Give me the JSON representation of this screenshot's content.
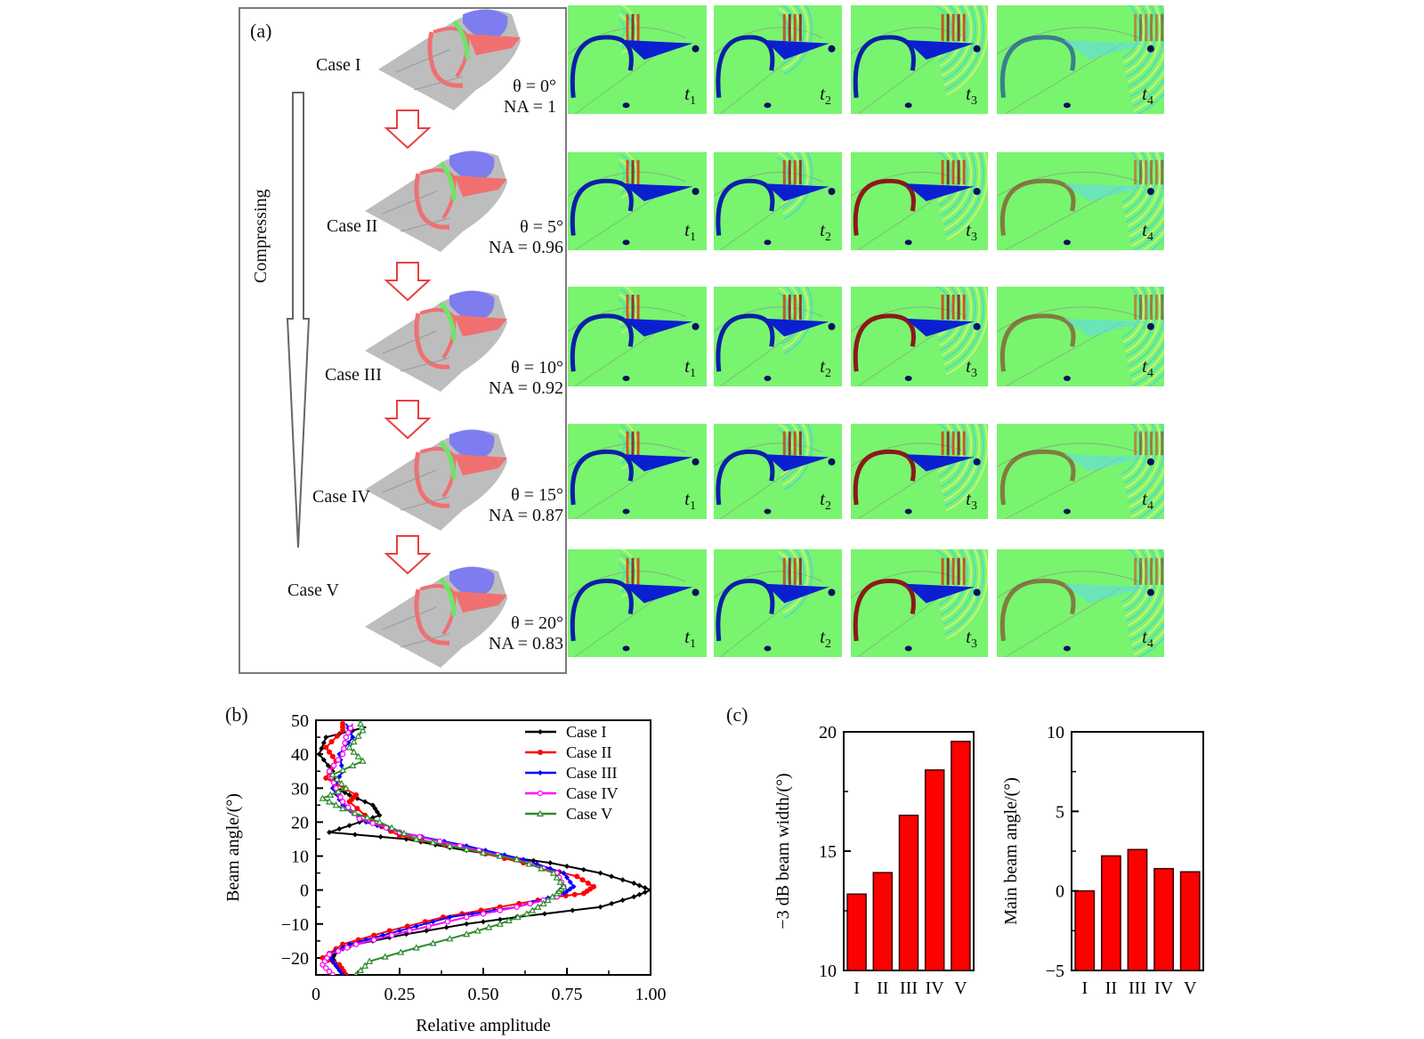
{
  "panel_a": {
    "label": "(a)",
    "compress_label": "Compressing",
    "cases": [
      {
        "name": "Case I",
        "theta": "θ = 0°",
        "na": "NA = 1"
      },
      {
        "name": "Case II",
        "theta": "θ = 5°",
        "na": "NA = 0.96"
      },
      {
        "name": "Case III",
        "theta": "θ = 10°",
        "na": "NA = 0.92"
      },
      {
        "name": "Case IV",
        "theta": "θ = 15°",
        "na": "NA = 0.87"
      },
      {
        "name": "Case V",
        "theta": "θ = 20°",
        "na": "NA = 0.83"
      }
    ],
    "time_labels": [
      {
        "t": "t",
        "sub": "1"
      },
      {
        "t": "t",
        "sub": "2"
      },
      {
        "t": "t",
        "sub": "3"
      },
      {
        "t": "t",
        "sub": "4"
      }
    ],
    "colors": {
      "field_background": "#79f46f",
      "anatomy_gray": "#bdbdbd",
      "anatomy_red": "#f07070",
      "anatomy_green": "#66ee66",
      "anatomy_blue": "#7777ee",
      "arrow_red": "#e84040"
    }
  },
  "chart_data": [
    {
      "panel_label": "(b)",
      "type": "line",
      "title": "",
      "xlabel": "Relative amplitude",
      "ylabel": "Beam angle/(°)",
      "xlim": [
        0,
        1.0
      ],
      "ylim": [
        -25,
        50
      ],
      "xticks": [
        "0",
        "0.25",
        "0.50",
        "0.75",
        "1.00"
      ],
      "yticks": [
        "−20",
        "−10",
        "0",
        "10",
        "20",
        "30",
        "40",
        "50"
      ],
      "legend_position": "top-right",
      "orientation": "x=amplitude, y=angle",
      "series": [
        {
          "name": "Case I",
          "color": "#000000",
          "marker": "filled-diamond",
          "points": [
            [
              0.08,
              -25
            ],
            [
              0.06,
              -22
            ],
            [
              0.05,
              -20
            ],
            [
              0.06,
              -18
            ],
            [
              0.12,
              -16
            ],
            [
              0.27,
              -13
            ],
            [
              0.45,
              -10
            ],
            [
              0.6,
              -8
            ],
            [
              0.85,
              -5
            ],
            [
              0.95,
              -2
            ],
            [
              1.0,
              0
            ],
            [
              0.95,
              2
            ],
            [
              0.85,
              5
            ],
            [
              0.7,
              8
            ],
            [
              0.55,
              10
            ],
            [
              0.4,
              12.5
            ],
            [
              0.27,
              15
            ],
            [
              0.04,
              17
            ],
            [
              0.13,
              20
            ],
            [
              0.19,
              22
            ],
            [
              0.17,
              25
            ],
            [
              0.1,
              28
            ],
            [
              0.06,
              30
            ],
            [
              0.05,
              35
            ],
            [
              0.01,
              40
            ],
            [
              0.03,
              45
            ],
            [
              0.15,
              48
            ]
          ]
        },
        {
          "name": "Case II",
          "color": "#ff0000",
          "marker": "filled-circle",
          "points": [
            [
              0.09,
              -25
            ],
            [
              0.07,
              -22
            ],
            [
              0.02,
              -20
            ],
            [
              0.08,
              -16
            ],
            [
              0.22,
              -12
            ],
            [
              0.38,
              -8
            ],
            [
              0.55,
              -5
            ],
            [
              0.72,
              -2
            ],
            [
              0.8,
              -1
            ],
            [
              0.83,
              1
            ],
            [
              0.78,
              4
            ],
            [
              0.62,
              8
            ],
            [
              0.45,
              12
            ],
            [
              0.25,
              16
            ],
            [
              0.17,
              20
            ],
            [
              0.1,
              26
            ],
            [
              0.12,
              28
            ],
            [
              0.03,
              33
            ],
            [
              0.06,
              38
            ],
            [
              0.03,
              42
            ],
            [
              0.08,
              47
            ],
            [
              0.08,
              50
            ]
          ]
        },
        {
          "name": "Case III",
          "color": "#0000ff",
          "marker": "filled-diamond",
          "points": [
            [
              0.08,
              -25
            ],
            [
              0.05,
              -21
            ],
            [
              0.04,
              -19
            ],
            [
              0.1,
              -16
            ],
            [
              0.25,
              -12
            ],
            [
              0.4,
              -8
            ],
            [
              0.6,
              -5
            ],
            [
              0.74,
              -1
            ],
            [
              0.77,
              1
            ],
            [
              0.74,
              5
            ],
            [
              0.62,
              9
            ],
            [
              0.45,
              13
            ],
            [
              0.25,
              17
            ],
            [
              0.15,
              20
            ],
            [
              0.08,
              25
            ],
            [
              0.05,
              30
            ],
            [
              0.08,
              35
            ],
            [
              0.07,
              40
            ],
            [
              0.11,
              45
            ],
            [
              0.09,
              49
            ]
          ]
        },
        {
          "name": "Case IV",
          "color": "#ff00ff",
          "marker": "open-circle",
          "points": [
            [
              0.05,
              -25
            ],
            [
              0.02,
              -22
            ],
            [
              0.04,
              -19
            ],
            [
              0.12,
              -16
            ],
            [
              0.28,
              -12
            ],
            [
              0.45,
              -8
            ],
            [
              0.6,
              -5
            ],
            [
              0.72,
              -2
            ],
            [
              0.74,
              1
            ],
            [
              0.72,
              5
            ],
            [
              0.6,
              9
            ],
            [
              0.43,
              13
            ],
            [
              0.25,
              17
            ],
            [
              0.13,
              21
            ],
            [
              0.08,
              26
            ],
            [
              0.06,
              30
            ],
            [
              0.04,
              35
            ],
            [
              0.08,
              40
            ],
            [
              0.09,
              45
            ],
            [
              0.11,
              49
            ]
          ]
        },
        {
          "name": "Case V",
          "color": "#2e8b2e",
          "marker": "open-triangle",
          "points": [
            [
              0.12,
              -25
            ],
            [
              0.16,
              -21
            ],
            [
              0.3,
              -17
            ],
            [
              0.45,
              -13
            ],
            [
              0.55,
              -10
            ],
            [
              0.63,
              -7
            ],
            [
              0.68,
              -4
            ],
            [
              0.72,
              -1
            ],
            [
              0.74,
              1
            ],
            [
              0.71,
              5
            ],
            [
              0.6,
              9
            ],
            [
              0.45,
              12
            ],
            [
              0.3,
              15
            ],
            [
              0.19,
              20
            ],
            [
              0.08,
              24
            ],
            [
              0.02,
              27
            ],
            [
              0.09,
              30
            ],
            [
              0.05,
              34
            ],
            [
              0.14,
              38
            ],
            [
              0.1,
              42
            ],
            [
              0.14,
              47
            ],
            [
              0.13,
              50
            ]
          ]
        }
      ]
    },
    {
      "panel_label": "(c)",
      "type": "bar",
      "title": "",
      "xlabel": "",
      "ylabel": "−3 dB beam width/(°)",
      "categories": [
        "I",
        "II",
        "III",
        "IV",
        "V"
      ],
      "values": [
        13.2,
        14.1,
        16.5,
        18.4,
        19.6
      ],
      "ylim": [
        10,
        20
      ],
      "yticks": [
        "10",
        "15",
        "20"
      ],
      "bar_color": "#ff0000"
    },
    {
      "type": "bar",
      "title": "",
      "xlabel": "",
      "ylabel": "Main beam angle/(°)",
      "categories": [
        "I",
        "II",
        "III",
        "IV",
        "V"
      ],
      "values": [
        0.0,
        2.2,
        2.6,
        1.4,
        1.2
      ],
      "ylim": [
        -5,
        10
      ],
      "yticks": [
        "−5",
        "0",
        "5",
        "10"
      ],
      "bar_color": "#ff0000"
    }
  ]
}
